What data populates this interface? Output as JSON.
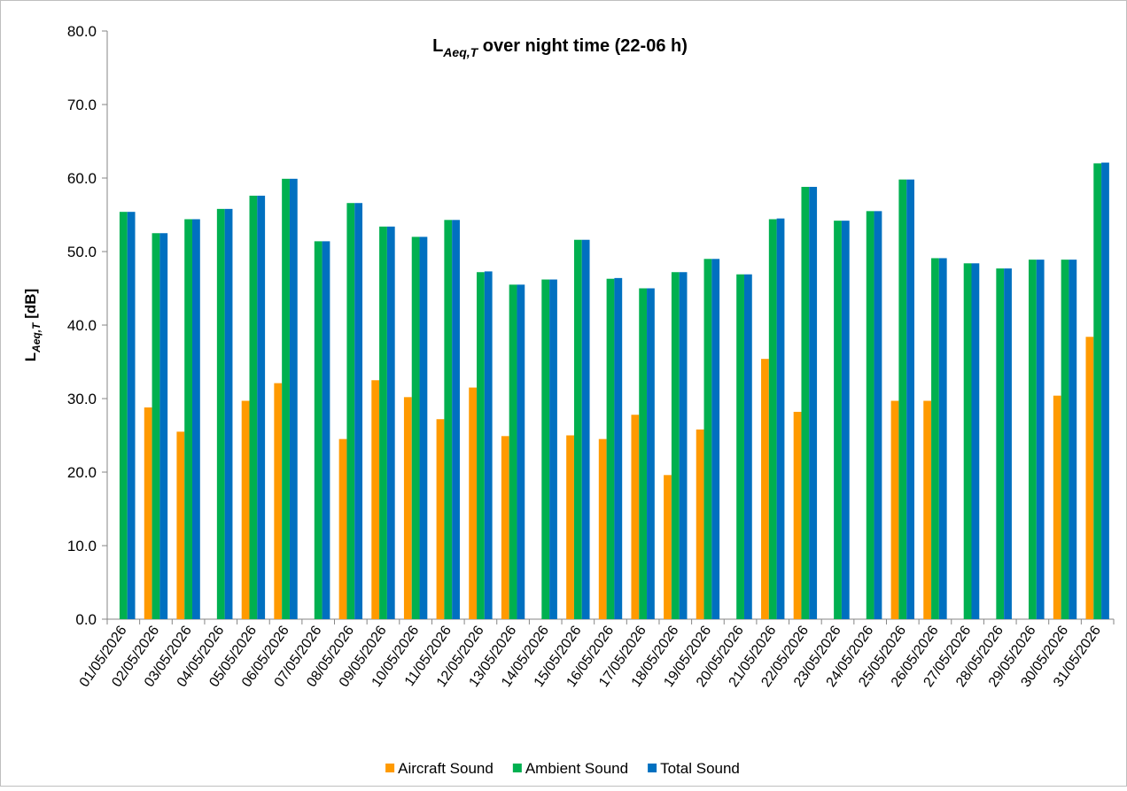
{
  "chart_data": {
    "type": "bar",
    "title": [
      "L",
      "Aeq,T",
      " over night time (22-06 h)"
    ],
    "y_label": [
      "L",
      "Aeq,T",
      " [dB]"
    ],
    "categories": [
      "01/05/2026",
      "02/05/2026",
      "03/05/2026",
      "04/05/2026",
      "05/05/2026",
      "06/05/2026",
      "07/05/2026",
      "08/05/2026",
      "09/05/2026",
      "10/05/2026",
      "11/05/2026",
      "12/05/2026",
      "13/05/2026",
      "14/05/2026",
      "15/05/2026",
      "16/05/2026",
      "17/05/2026",
      "18/05/2026",
      "19/05/2026",
      "20/05/2026",
      "21/05/2026",
      "22/05/2026",
      "23/05/2026",
      "24/05/2026",
      "25/05/2026",
      "26/05/2026",
      "27/05/2026",
      "28/05/2026",
      "29/05/2026",
      "30/05/2026",
      "31/05/2026"
    ],
    "series": [
      {
        "name": "Aircraft Sound",
        "color": "#ff9a00",
        "values": [
          null,
          28.8,
          25.5,
          null,
          29.7,
          32.1,
          null,
          24.5,
          32.5,
          30.2,
          27.2,
          31.5,
          24.9,
          null,
          25.0,
          24.5,
          27.8,
          19.6,
          25.8,
          null,
          35.4,
          28.2,
          null,
          null,
          29.7,
          29.7,
          null,
          null,
          null,
          30.4,
          38.4
        ]
      },
      {
        "name": "Ambient Sound",
        "color": "#00b050",
        "values": [
          55.4,
          52.5,
          54.4,
          55.8,
          57.6,
          59.9,
          51.4,
          56.6,
          53.4,
          52.0,
          54.3,
          47.2,
          45.5,
          46.2,
          51.6,
          46.3,
          45.0,
          47.2,
          49.0,
          46.9,
          54.4,
          58.8,
          54.2,
          55.5,
          59.8,
          49.1,
          48.4,
          47.7,
          48.9,
          48.9,
          62.0
        ]
      },
      {
        "name": "Total Sound",
        "color": "#0070c0",
        "values": [
          55.4,
          52.5,
          54.4,
          55.8,
          57.6,
          59.9,
          51.4,
          56.6,
          53.4,
          52.0,
          54.3,
          47.3,
          45.5,
          46.2,
          51.6,
          46.4,
          45.0,
          47.2,
          49.0,
          46.9,
          54.5,
          58.8,
          54.2,
          55.5,
          59.8,
          49.1,
          48.4,
          47.7,
          48.9,
          48.9,
          62.1
        ]
      }
    ],
    "ylim": [
      0,
      80
    ],
    "yticks": [
      {
        "value": 0,
        "label": "0.0"
      },
      {
        "value": 10,
        "label": "10.0"
      },
      {
        "value": 20,
        "label": "20.0"
      },
      {
        "value": 30,
        "label": "30.0"
      },
      {
        "value": 40,
        "label": "40.0"
      },
      {
        "value": 50,
        "label": "50.0"
      },
      {
        "value": 60,
        "label": "60.0"
      },
      {
        "value": 70,
        "label": "70.0"
      },
      {
        "value": 80,
        "label": "80.0"
      }
    ],
    "legend": "bottom"
  }
}
